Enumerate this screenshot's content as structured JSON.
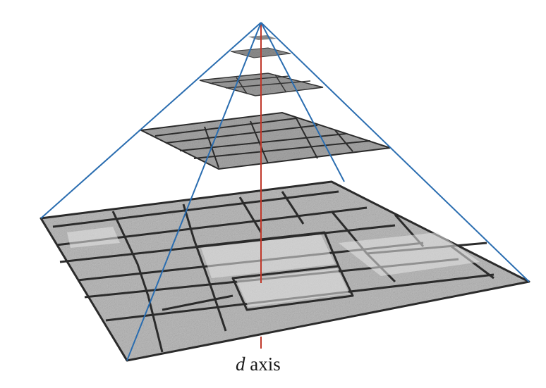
{
  "label": {
    "symbol": "d",
    "word": "axis"
  },
  "colors": {
    "pyramid_edges": "#2a6db0",
    "d_axis": "#c0392b",
    "stone_light": "#dcdcdc",
    "stone_mid": "#a9a9a9",
    "mortar": "#2b2b2b"
  },
  "levels": 5,
  "texture": "stone-paving"
}
